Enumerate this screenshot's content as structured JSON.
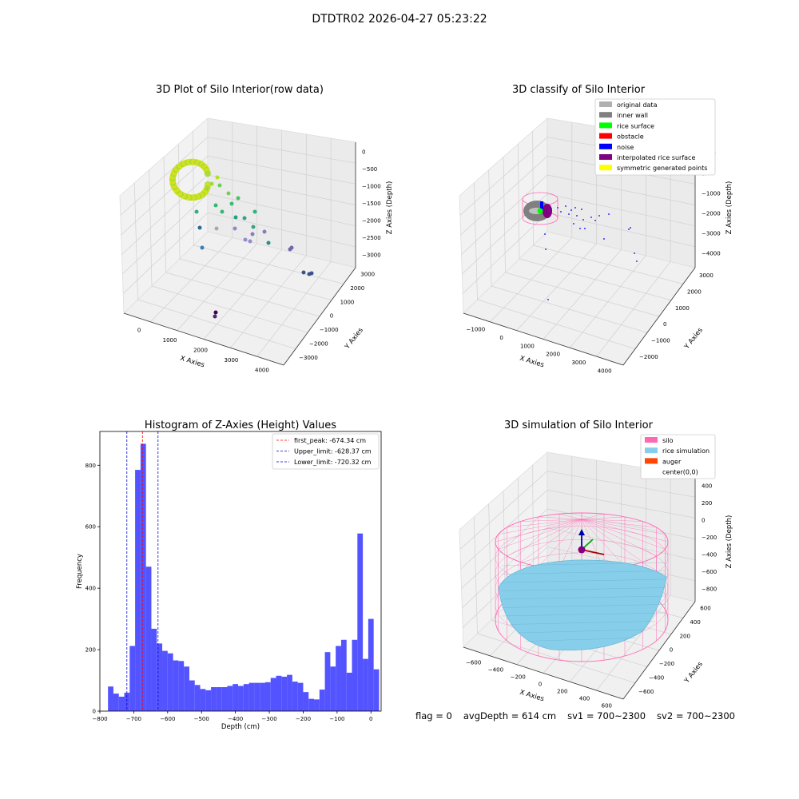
{
  "suptitle": "DTDTR02 2026-04-27 05:23:22",
  "status": {
    "flag": "flag = 0",
    "avg_depth": "avgDepth = 614 cm",
    "sv1": "sv1 = 700~2300",
    "sv2": "sv2 = 700~2300"
  },
  "chart_data": [
    {
      "type": "scatter",
      "title": "3D Plot of Silo Interior(row data)",
      "xlabel": "X Axies",
      "ylabel": "Y Axies",
      "zlabel": "Z Axies (Depth)",
      "x_ticks": [
        "0",
        "1000",
        "2000",
        "3000",
        "4000"
      ],
      "y_ticks": [
        "−3000",
        "−2000",
        "−1000",
        "0",
        "1000",
        "2000",
        "3000"
      ],
      "z_ticks": [
        "−3000",
        "−2500",
        "−2000",
        "−1500",
        "−1000",
        "−500",
        "0"
      ],
      "xlim": [
        -700,
        4300
      ],
      "ylim": [
        -3100,
        3300
      ],
      "zlim": [
        -3200,
        100
      ],
      "colormap": "viridis",
      "point_groups": [
        {
          "color": "#c8e020",
          "x": [
            -300,
            400
          ],
          "y": [
            -200,
            600
          ],
          "z": [
            -400,
            -1100
          ]
        },
        {
          "color": "#35b779",
          "x": [
            800,
            2600
          ],
          "y": [
            -500,
            1800
          ],
          "z": [
            -1000,
            -2300
          ]
        },
        {
          "color": "#31688e",
          "x": [
            3200,
            3900
          ],
          "y": [
            -2200,
            -1800
          ],
          "z": [
            -2600,
            -3000
          ]
        },
        {
          "color": "#440154",
          "x": [
            2000,
            2200
          ],
          "y": [
            -2600,
            -2400
          ],
          "z": [
            -3100,
            -3200
          ]
        }
      ]
    },
    {
      "type": "scatter",
      "title": "3D classify of Silo Interior",
      "xlabel": "X Axies",
      "ylabel": "Y Axies",
      "zlabel": "Z Axies (Depth)",
      "x_ticks": [
        "−1000",
        "0",
        "1000",
        "2000",
        "3000",
        "4000"
      ],
      "y_ticks": [
        "−2000",
        "−1000",
        "0",
        "1000",
        "2000",
        "3000"
      ],
      "z_ticks": [
        "−4000",
        "−3000",
        "−2000",
        "−1000",
        "0",
        "1000"
      ],
      "xlim": [
        -1500,
        4500
      ],
      "ylim": [
        -2500,
        3300
      ],
      "zlim": [
        -4500,
        1100
      ],
      "legend_position": "upper right",
      "legend": [
        {
          "label": "original data",
          "color": "#b0b0b0"
        },
        {
          "label": "inner wall",
          "color": "#808080"
        },
        {
          "label": "rice surface",
          "color": "#00ff00"
        },
        {
          "label": "obstacle",
          "color": "#ff0000"
        },
        {
          "label": "noise",
          "color": "#0000ff"
        },
        {
          "label": "interpolated rice surface",
          "color": "#800080"
        },
        {
          "label": "symmetric generated points",
          "color": "#ffff00"
        }
      ]
    },
    {
      "type": "bar",
      "title": "Histogram of Z-Axies (Height) Values",
      "xlabel": "Depth (cm)",
      "ylabel": "Frequency",
      "xlim": [
        -800,
        30
      ],
      "ylim": [
        0,
        910
      ],
      "x_ticks": [
        -800,
        -700,
        -600,
        -500,
        -400,
        -300,
        -200,
        -100,
        0
      ],
      "y_ticks": [
        0,
        200,
        400,
        600,
        800
      ],
      "bar_color": "#5050ff",
      "bin_width": 16,
      "bin_start": -776,
      "values": [
        80,
        57,
        47,
        60,
        212,
        785,
        870,
        470,
        268,
        220,
        196,
        188,
        165,
        163,
        145,
        100,
        85,
        72,
        68,
        78,
        78,
        78,
        82,
        88,
        82,
        88,
        92,
        92,
        92,
        94,
        108,
        115,
        112,
        118,
        96,
        92,
        62,
        40,
        38,
        70,
        192,
        145,
        212,
        232,
        125,
        232,
        578,
        170,
        300,
        136
      ],
      "vlines": [
        {
          "label": "first_peak: -674.34 cm",
          "x": -674.34,
          "color": "#ff0000"
        },
        {
          "label": "Upper_limit: -628.37 cm",
          "x": -628.37,
          "color": "#0000cc"
        },
        {
          "label": "Lower_limit: -720.32 cm",
          "x": -720.32,
          "color": "#0000cc"
        }
      ],
      "legend_position": "upper right"
    },
    {
      "type": "surface",
      "title": "3D simulation of Silo Interior",
      "xlabel": "X Axies",
      "ylabel": "Y Axies",
      "zlabel": "Z Axies (Depth)",
      "x_ticks": [
        "−600",
        "−400",
        "−200",
        "0",
        "200",
        "400",
        "600"
      ],
      "y_ticks": [
        "−600",
        "−400",
        "−200",
        "0",
        "200",
        "400",
        "600"
      ],
      "z_ticks": [
        "−800",
        "−600",
        "−400",
        "−200",
        "0",
        "200",
        "400"
      ],
      "xlim": [
        -700,
        700
      ],
      "ylim": [
        -700,
        700
      ],
      "zlim": [
        -900,
        450
      ],
      "legend_position": "upper right",
      "legend": [
        {
          "label": "silo",
          "color": "#ff69b4"
        },
        {
          "label": "rice simulation",
          "color": "#87ceeb"
        },
        {
          "label": "auger",
          "color": "#ff4500"
        },
        {
          "label": "center(0,0)",
          "color": ""
        }
      ]
    }
  ]
}
